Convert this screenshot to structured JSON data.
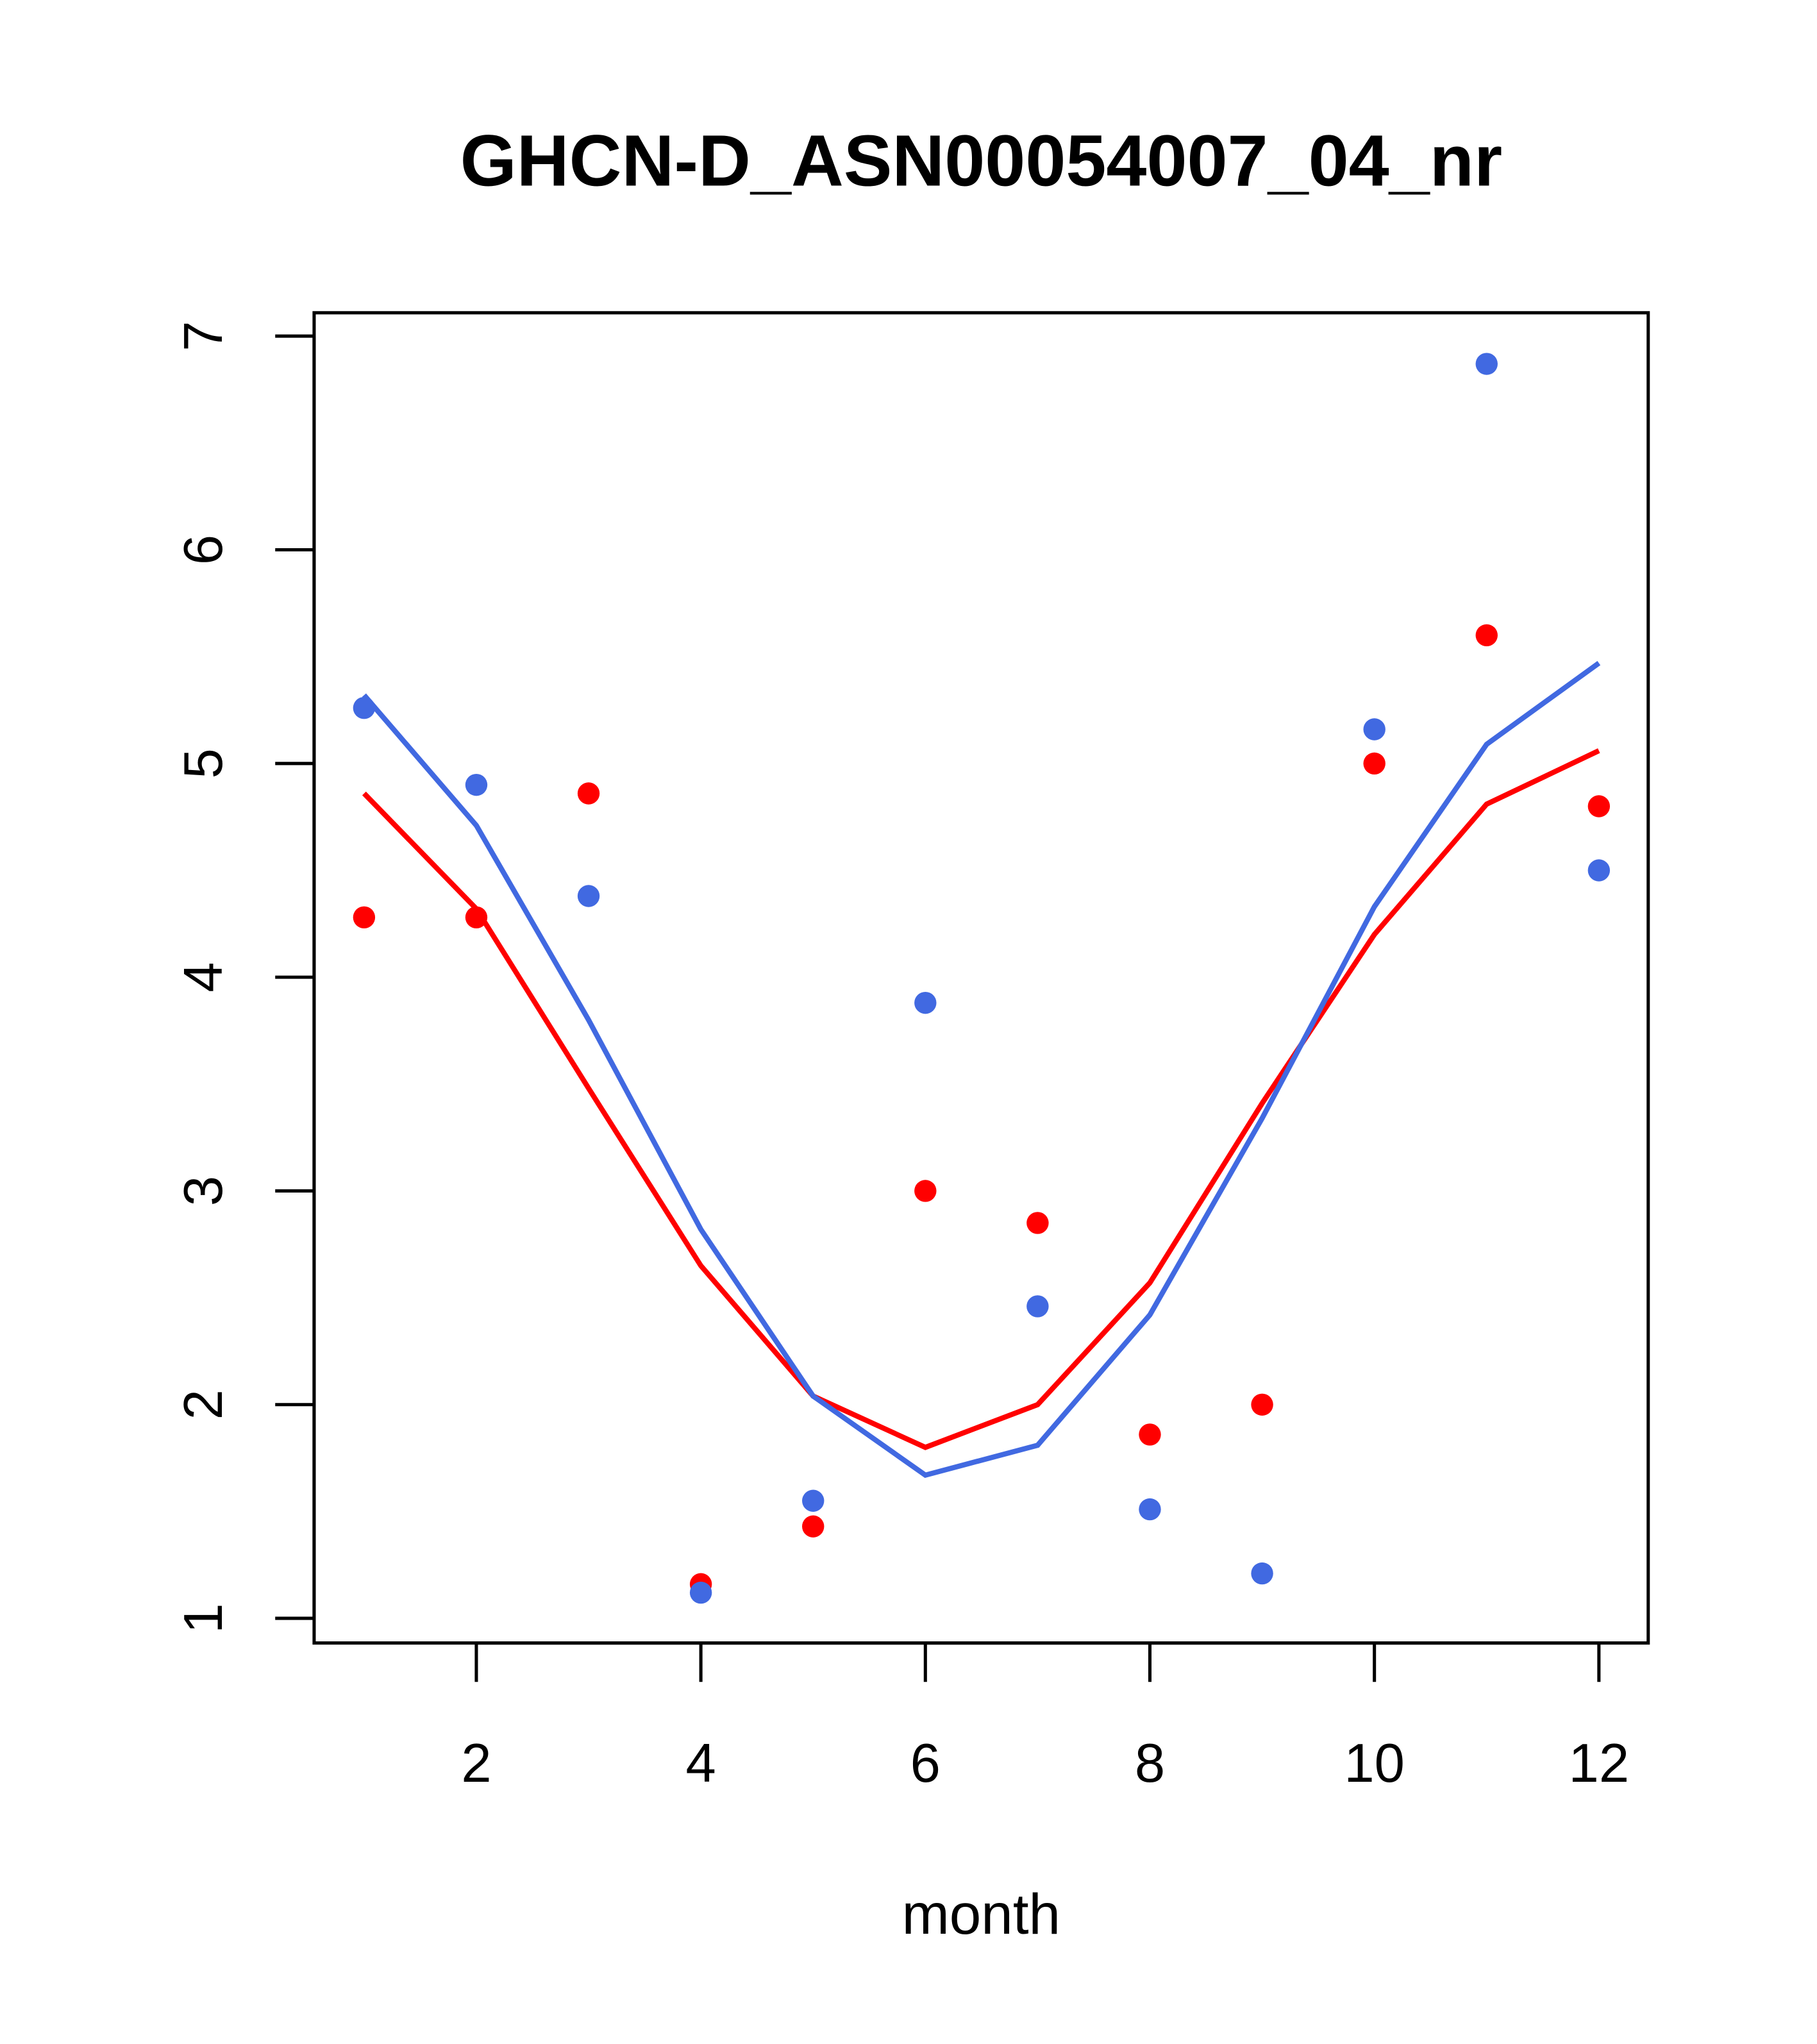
{
  "chart_data": {
    "type": "scatter",
    "title": "GHCN-D_ASN00054007_04_nr",
    "xlabel": "month",
    "ylabel": "",
    "xlim": [
      0.56,
      12.44
    ],
    "ylim": [
      0.89,
      7.11
    ],
    "xticks": [
      2,
      4,
      6,
      8,
      10,
      12
    ],
    "yticks": [
      1,
      2,
      3,
      4,
      5,
      6,
      7
    ],
    "xtick_labels": [
      "2",
      "4",
      "6",
      "8",
      "10",
      "12"
    ],
    "ytick_labels": [
      "1",
      "2",
      "3",
      "4",
      "5",
      "6",
      "7"
    ],
    "grid": false,
    "legend": "none",
    "x": [
      1,
      2,
      3,
      4,
      5,
      6,
      7,
      8,
      9,
      10,
      11,
      12
    ],
    "series": [
      {
        "name": "red-points",
        "kind": "points",
        "color": "#FF0000",
        "values": [
          4.28,
          4.28,
          4.86,
          1.16,
          1.43,
          3.0,
          2.85,
          1.86,
          2.0,
          5.0,
          5.6,
          4.8
        ]
      },
      {
        "name": "blue-points",
        "kind": "points",
        "color": "#4169E1",
        "values": [
          5.26,
          4.9,
          4.38,
          1.12,
          1.55,
          3.88,
          2.46,
          1.51,
          1.21,
          5.16,
          6.87,
          4.5
        ]
      },
      {
        "name": "red-line",
        "kind": "line",
        "color": "#FF0000",
        "values": [
          4.86,
          4.32,
          3.48,
          2.65,
          2.04,
          1.8,
          2.0,
          2.57,
          3.41,
          4.2,
          4.81,
          5.06
        ]
      },
      {
        "name": "blue-line",
        "kind": "line",
        "color": "#4169E1",
        "values": [
          5.32,
          4.71,
          3.8,
          2.82,
          2.04,
          1.67,
          1.81,
          2.42,
          3.34,
          4.33,
          5.09,
          5.47
        ]
      }
    ]
  }
}
